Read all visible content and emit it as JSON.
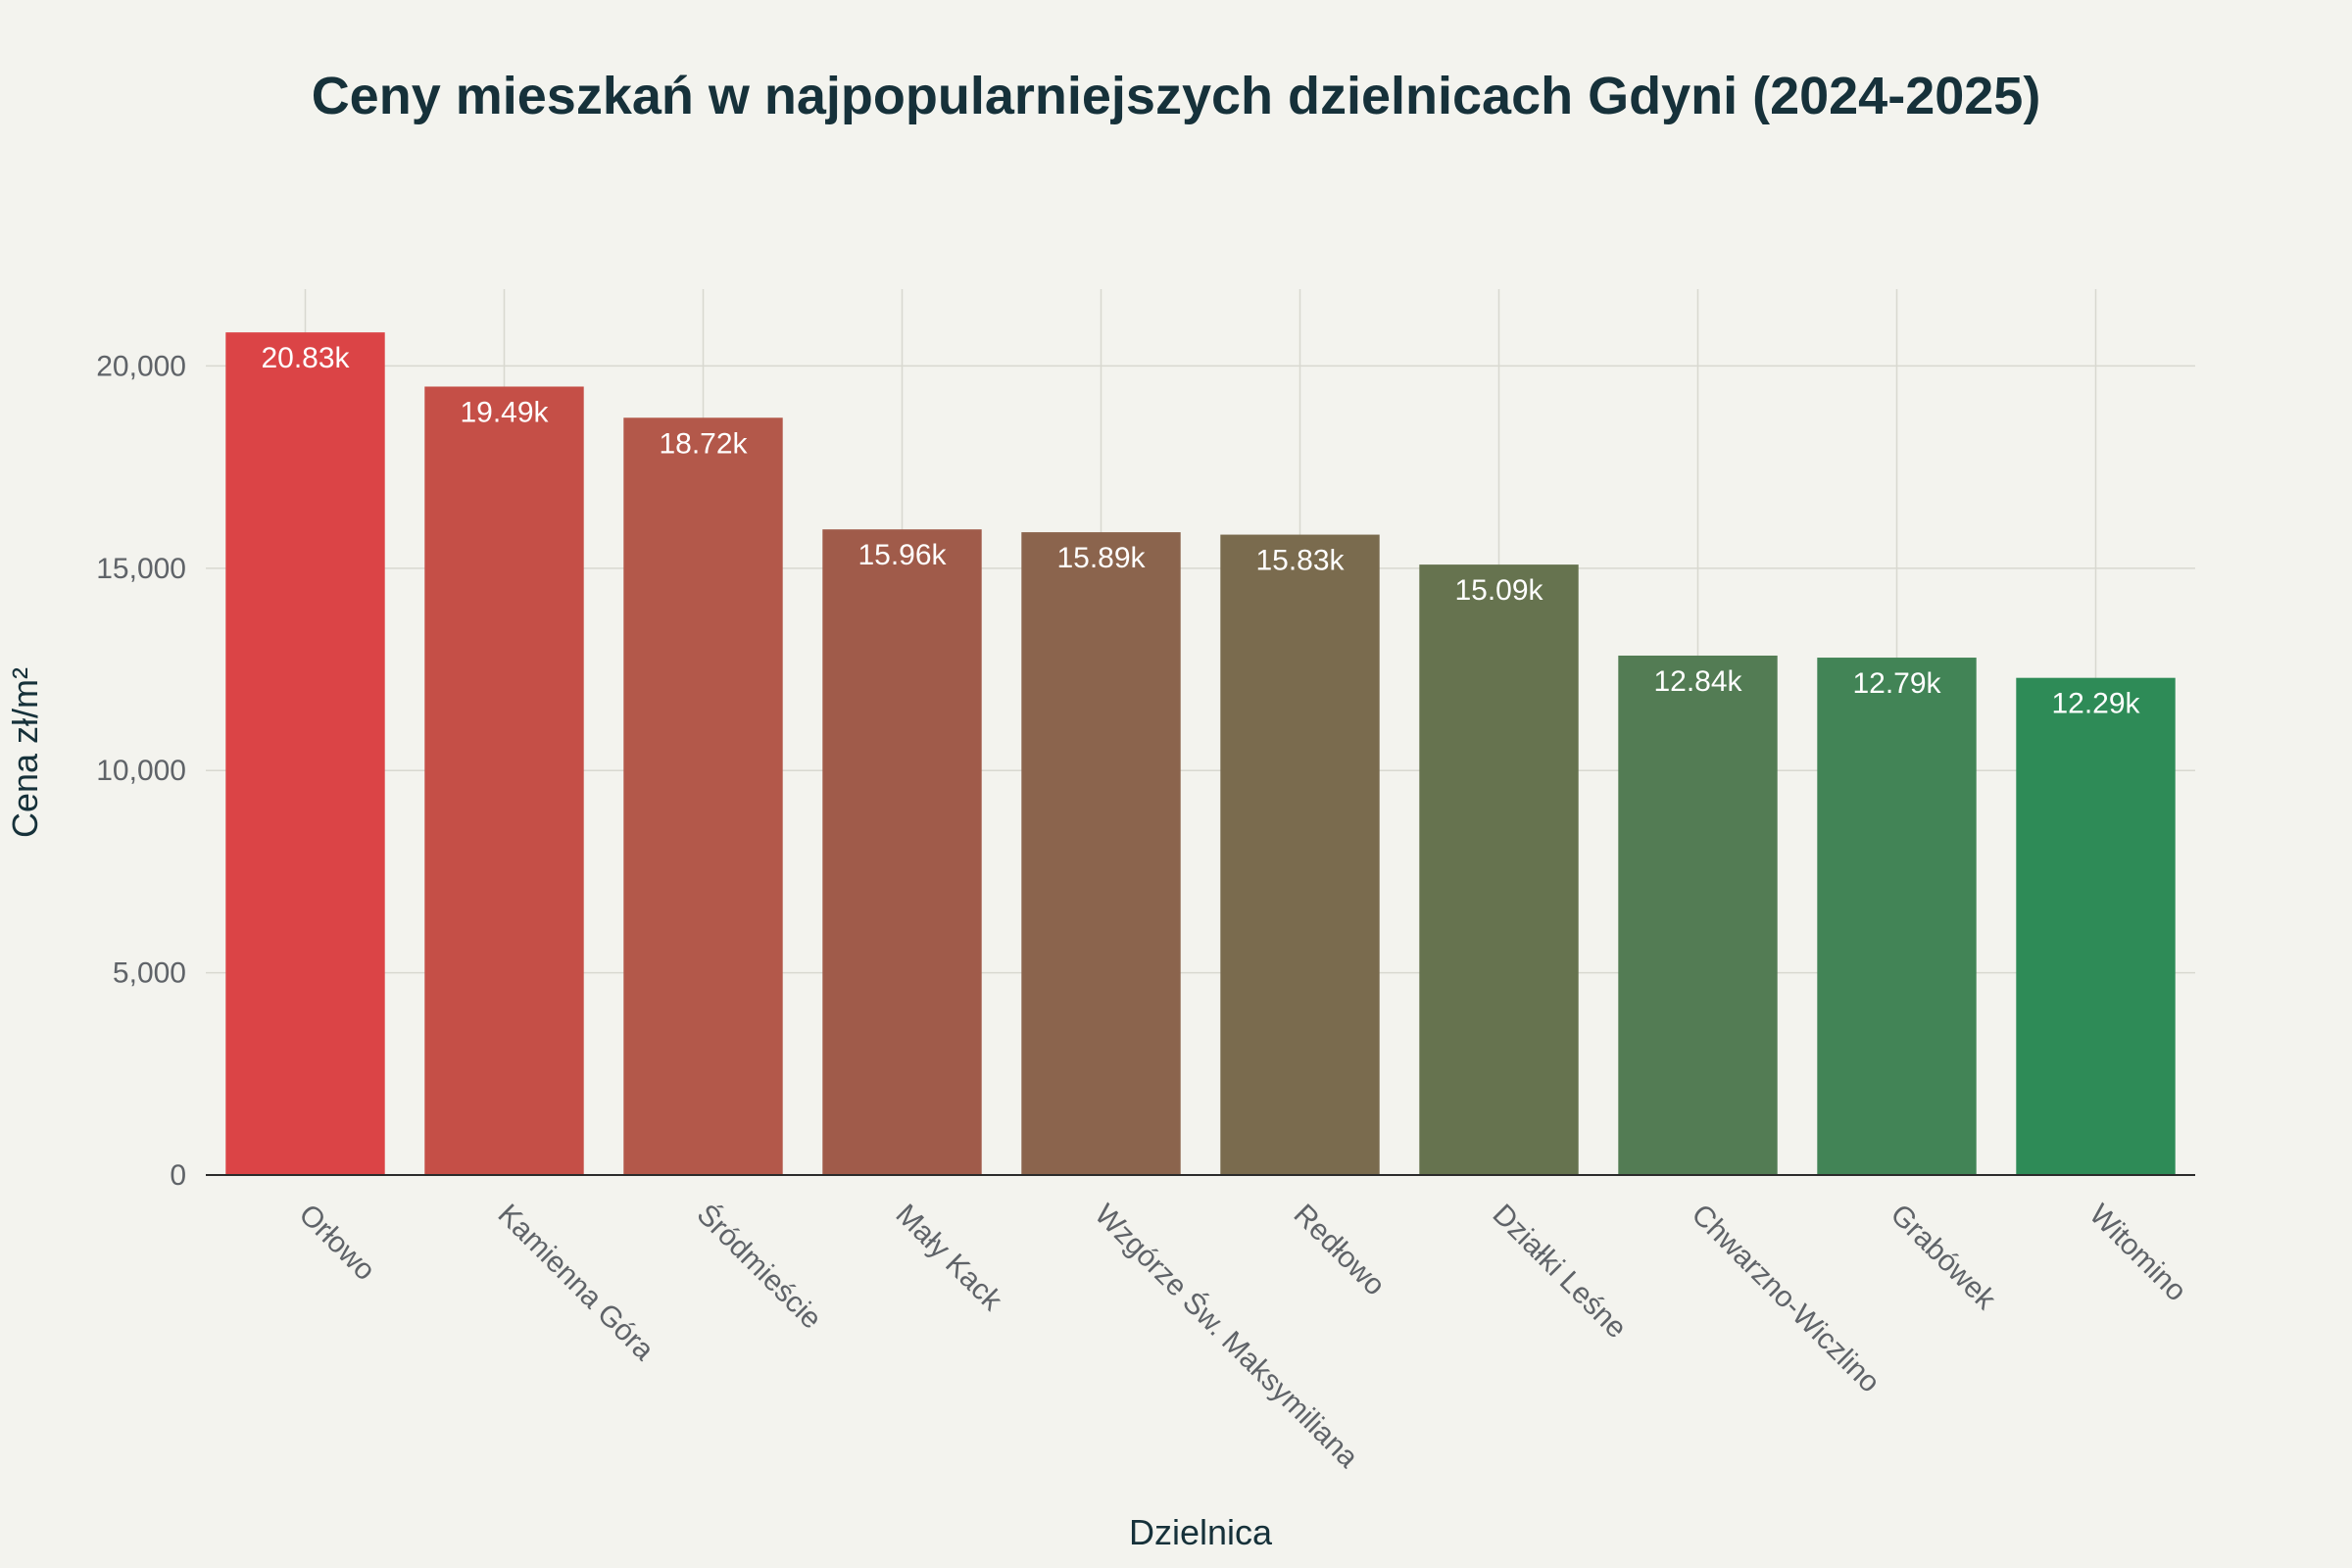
{
  "chart_data": {
    "type": "bar",
    "title": "Ceny mieszkań w najpopularniejszych dzielnicach Gdyni (2024-2025)",
    "xlabel": "Dzielnica",
    "ylabel": "Cena zł/m²",
    "categories": [
      "Orłowo",
      "Kamienna Góra",
      "Śródmieście",
      "Mały Kack",
      "Wzgórze Św. Maksymiliana",
      "Redłowo",
      "Działki Leśne",
      "Chwarzno-Wiczlino",
      "Grabówek",
      "Witomino"
    ],
    "values": [
      20830,
      19490,
      18720,
      15960,
      15890,
      15830,
      15090,
      12840,
      12790,
      12290
    ],
    "value_labels": [
      "20.83k",
      "19.49k",
      "18.72k",
      "15.96k",
      "15.89k",
      "15.83k",
      "15.09k",
      "12.84k",
      "12.79k",
      "12.29k"
    ],
    "colors": [
      "#db4446",
      "#c54f47",
      "#b3584a",
      "#a05b4a",
      "#8b644d",
      "#7a6b4e",
      "#66734f",
      "#537c54",
      "#428456",
      "#2e8b57"
    ],
    "ylim": [
      0,
      21900
    ],
    "yticks": [
      0,
      5000,
      10000,
      15000,
      20000
    ],
    "ytick_labels": [
      "0",
      "5,000",
      "10,000",
      "15,000",
      "20,000"
    ],
    "grid": true,
    "legend": "none"
  }
}
